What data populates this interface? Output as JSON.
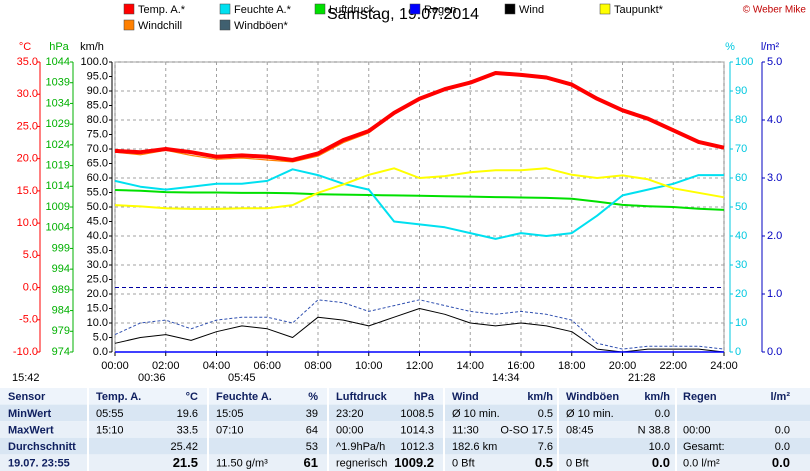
{
  "chart_data": {
    "type": "line",
    "title": "Samstag, 19.07.2014",
    "copyright": "© Weber Mike",
    "x": [
      0,
      1,
      2,
      3,
      4,
      5,
      6,
      7,
      8,
      9,
      10,
      11,
      12,
      13,
      14,
      15,
      16,
      17,
      18,
      19,
      20,
      21,
      22,
      23,
      24
    ],
    "xlim": [
      0,
      24
    ],
    "xticks": [
      {
        "value": 0,
        "label": "00:00"
      },
      {
        "value": 2,
        "label": "02:00"
      },
      {
        "value": 4,
        "label": "04:00"
      },
      {
        "value": 6,
        "label": "06:00"
      },
      {
        "value": 8,
        "label": "08:00"
      },
      {
        "value": 10,
        "label": "10:00"
      },
      {
        "value": 12,
        "label": "12:00"
      },
      {
        "value": 14,
        "label": "14:00"
      },
      {
        "value": 16,
        "label": "16:00"
      },
      {
        "value": 18,
        "label": "18:00"
      },
      {
        "value": 20,
        "label": "20:00"
      },
      {
        "value": 22,
        "label": "22:00"
      },
      {
        "value": 24,
        "label": "24:00"
      }
    ],
    "grid": true,
    "freezing_line": 0,
    "axes": [
      {
        "unit": "°C",
        "color": "#ff0000",
        "lim": [
          -10,
          35
        ],
        "ticks": [
          {
            "value": -10,
            "label": "-10.0"
          },
          {
            "value": -5,
            "label": "-5.0"
          },
          {
            "value": 0,
            "label": "0.0"
          },
          {
            "value": 5,
            "label": "5.0"
          },
          {
            "value": 10,
            "label": "10.0"
          },
          {
            "value": 15,
            "label": "15.0"
          },
          {
            "value": 20,
            "label": "20.0"
          },
          {
            "value": 25,
            "label": "25.0"
          },
          {
            "value": 30,
            "label": "30.0"
          },
          {
            "value": 35,
            "label": "35.0"
          }
        ]
      },
      {
        "unit": "hPa",
        "color": "#00b000",
        "lim": [
          974,
          1044
        ],
        "ticks": [
          974,
          979,
          984,
          989,
          994,
          999,
          1004,
          1009,
          1014,
          1019,
          1024,
          1029,
          1034,
          1039,
          1044
        ]
      },
      {
        "unit": "km/h",
        "color": "#000000",
        "lim": [
          0,
          100
        ],
        "ticks": [
          {
            "value": 0,
            "label": "0.0"
          },
          {
            "value": 5,
            "label": "5.0"
          },
          {
            "value": 10,
            "label": "10.0"
          },
          {
            "value": 15,
            "label": "15.0"
          },
          {
            "value": 20,
            "label": "20.0"
          },
          {
            "value": 25,
            "label": "25.0"
          },
          {
            "value": 30,
            "label": "30.0"
          },
          {
            "value": 35,
            "label": "35.0"
          },
          {
            "value": 40,
            "label": "40.0"
          },
          {
            "value": 45,
            "label": "45.0"
          },
          {
            "value": 50,
            "label": "50.0"
          },
          {
            "value": 55,
            "label": "55.0"
          },
          {
            "value": 60,
            "label": "60.0"
          },
          {
            "value": 65,
            "label": "65.0"
          },
          {
            "value": 70,
            "label": "70.0"
          },
          {
            "value": 75,
            "label": "75.0"
          },
          {
            "value": 80,
            "label": "80.0"
          },
          {
            "value": 85,
            "label": "85.0"
          },
          {
            "value": 90,
            "label": "90.0"
          },
          {
            "value": 95,
            "label": "95.0"
          },
          {
            "value": 100,
            "label": "100.0"
          }
        ]
      },
      {
        "unit": "%",
        "color": "#00c8e0",
        "lim": [
          0,
          100
        ],
        "ticks": [
          0,
          10,
          20,
          30,
          40,
          50,
          60,
          70,
          80,
          90,
          100
        ]
      },
      {
        "unit": "l/m²",
        "color": "#0000c0",
        "lim": [
          0,
          5
        ],
        "ticks": [
          {
            "value": 0,
            "label": "0.0"
          },
          {
            "value": 1,
            "label": "1.0"
          },
          {
            "value": 2,
            "label": "2.0"
          },
          {
            "value": 3,
            "label": "3.0"
          },
          {
            "value": 4,
            "label": "4.0"
          },
          {
            "value": 5,
            "label": "5.0"
          }
        ]
      }
    ],
    "series": [
      {
        "name": "Temp. A.*",
        "color": "#ff0000",
        "axis": 0,
        "values": [
          21.2,
          21.0,
          21.5,
          21.0,
          20.3,
          20.5,
          20.3,
          19.8,
          20.8,
          22.9,
          24.3,
          27.1,
          29.3,
          30.8,
          31.8,
          33.3,
          33.0,
          32.6,
          31.5,
          29.3,
          27.5,
          26.2,
          24.4,
          22.6,
          21.7
        ]
      },
      {
        "name": "Feuchte A.*",
        "color": "#00e0f0",
        "axis": 3,
        "values": [
          59,
          57,
          56,
          57,
          58,
          58,
          59,
          63,
          61,
          58,
          56,
          45,
          44,
          43,
          41,
          39,
          41,
          40,
          41,
          47,
          54,
          56,
          58,
          61,
          61
        ]
      },
      {
        "name": "Luftdruck",
        "color": "#00e000",
        "axis": 1,
        "values": [
          1013.1,
          1012.9,
          1012.6,
          1012.5,
          1012.5,
          1012.4,
          1012.4,
          1012.3,
          1012.1,
          1012.0,
          1011.9,
          1011.8,
          1011.7,
          1011.6,
          1011.5,
          1011.4,
          1011.3,
          1011.2,
          1011.0,
          1010.3,
          1009.5,
          1009.2,
          1009.0,
          1008.6,
          1008.3
        ]
      },
      {
        "name": "Regen",
        "color": "#0000ff",
        "axis": 4,
        "values": [
          0,
          0,
          0,
          0,
          0,
          0,
          0,
          0,
          0,
          0,
          0,
          0,
          0,
          0,
          0,
          0,
          0,
          0,
          0,
          0,
          0,
          0,
          0,
          0,
          0
        ]
      },
      {
        "name": "Wind",
        "color": "#000000",
        "axis": 2,
        "values": [
          3,
          5,
          6,
          4,
          7,
          9,
          8,
          5,
          12,
          11,
          9,
          12,
          15,
          13,
          10,
          9,
          10,
          9,
          7,
          1,
          0,
          1,
          1,
          1,
          0
        ]
      },
      {
        "name": "Taupunkt*",
        "color": "#ffff00",
        "axis": 0,
        "values": [
          12.8,
          12.6,
          12.3,
          12.2,
          12.2,
          12.3,
          12.3,
          12.8,
          14.7,
          16.0,
          17.5,
          18.5,
          17.0,
          17.3,
          17.9,
          18.2,
          18.2,
          18.5,
          17.5,
          17.0,
          17.4,
          16.8,
          15.4,
          14.7,
          14.0
        ]
      },
      {
        "name": "Windchill",
        "color": "#ff8000",
        "axis": 0,
        "values": [
          21.0,
          20.6,
          21.3,
          20.5,
          19.9,
          20.1,
          19.8,
          19.5,
          20.4,
          22.5,
          24.0,
          27.0,
          29.2,
          30.7,
          31.7,
          33.2,
          32.9,
          32.4,
          31.3,
          29.2,
          27.4,
          26.0,
          24.2,
          22.4,
          21.6
        ]
      },
      {
        "name": "Windböen*",
        "color": "#406070",
        "axis": 2,
        "values": [
          6,
          10,
          11,
          8,
          11,
          12,
          12,
          10,
          18,
          17,
          14,
          16,
          18,
          16,
          14,
          13,
          14,
          13,
          11,
          3,
          1,
          2,
          2,
          2,
          1
        ]
      }
    ],
    "events": [
      "15:42",
      "00:36",
      "05:45",
      "14:34",
      "21:28"
    ]
  },
  "table": {
    "rows": [
      [
        "Sensor",
        "Temp. A.",
        "°C",
        "Feuchte A.",
        "%",
        "Luftdruck",
        "hPa",
        "Wind",
        "km/h",
        "Windböen",
        "km/h",
        "Regen",
        "l/m²"
      ],
      [
        "MinWert",
        "05:55",
        "19.6",
        "15:05",
        "39",
        "23:20",
        "1008.5",
        "Ø 10 min.",
        "0.5",
        "Ø 10 min.",
        "0.0",
        null,
        null
      ],
      [
        "MaxWert",
        "15:10",
        "33.5",
        "07:10",
        "64",
        "00:00",
        "1014.3",
        "11:30",
        "O-SO 17.5",
        "08:45",
        "N 38.8",
        "00:00",
        "0.0"
      ],
      [
        "Durchschnitt",
        null,
        "25.42",
        null,
        "53",
        "^1.9hPa/h",
        "1012.3",
        "182.6 km",
        "7.6",
        null,
        "10.0",
        "Gesamt:",
        "0.0"
      ],
      [
        "19.07. 23:55",
        null,
        "21.5",
        "11.50 g/m³",
        "61",
        "regnerisch",
        "1009.2",
        "0 Bft",
        "0.5",
        "0 Bft",
        "0.0",
        "0.0 l/m²",
        "0.0"
      ]
    ]
  }
}
